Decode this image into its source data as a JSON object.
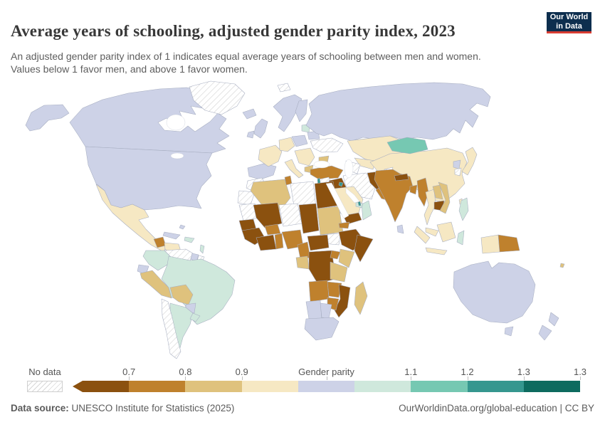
{
  "header": {
    "title": "Average years of schooling, adjusted gender parity index, 2023",
    "subtitle": "An adjusted gender parity index of 1 indicates equal average years of schooling between men and women. Values below 1 favor men, and above 1 favor women.",
    "logo": {
      "line1": "Our World",
      "line2": "in Data"
    }
  },
  "legend": {
    "no_data_label": "No data",
    "ticks": [
      {
        "label": "0.7",
        "anchor": "boundary",
        "i": 1
      },
      {
        "label": "0.8",
        "anchor": "boundary",
        "i": 2
      },
      {
        "label": "0.9",
        "anchor": "boundary",
        "i": 3
      },
      {
        "label": "Gender parity",
        "anchor": "mid",
        "i": 5
      },
      {
        "label": "1.1",
        "anchor": "boundary",
        "i": 6
      },
      {
        "label": "1.2",
        "anchor": "boundary",
        "i": 7
      },
      {
        "label": "1.3",
        "anchor": "boundary",
        "i": 8
      },
      {
        "label": "1.3",
        "anchor": "boundary",
        "i": 9
      }
    ]
  },
  "footer": {
    "source_label": "Data source:",
    "source_text": " UNESCO Institute for Statistics (2025)",
    "credit_text": "OurWorldinData.org/global-education | CC BY"
  },
  "chart_data": {
    "type": "choropleth",
    "title": "Average years of schooling, adjusted gender parity index",
    "year": "2023",
    "legend_tick_labels": [
      "0.7",
      "0.8",
      "0.9",
      "Gender parity",
      "1.1",
      "1.2",
      "1.3",
      "1.3"
    ],
    "no_data_style": "white with gray diagonal hatching",
    "bin_order": [
      "lt07",
      "b0708",
      "b0809",
      "b0910",
      "parity",
      "b1011",
      "b1112",
      "b1213",
      "gt13"
    ],
    "palette": {
      "lt07": "#8b510f",
      "b0708": "#bf812d",
      "b0809": "#dfc27d",
      "b0910": "#f6e8c3",
      "parity": "#cdd2e7",
      "b1011": "#cfe8dc",
      "b1112": "#76c8b2",
      "b1213": "#35978f",
      "gt13": "#0d6b5f"
    },
    "regions": [
      {
        "id": "alaska",
        "cat": "parity"
      },
      {
        "id": "canada",
        "cat": "parity"
      },
      {
        "id": "usa",
        "cat": "parity"
      },
      {
        "id": "greenland",
        "cat": "nodata"
      },
      {
        "id": "iceland",
        "cat": "parity"
      },
      {
        "id": "mexico",
        "cat": "b0910"
      },
      {
        "id": "guatemala",
        "cat": "b0708"
      },
      {
        "id": "honduras",
        "cat": "b0910"
      },
      {
        "id": "costarica-panama",
        "cat": "b1011"
      },
      {
        "id": "cuba",
        "cat": "parity"
      },
      {
        "id": "hispaniola",
        "cat": "b1011"
      },
      {
        "id": "bahamas",
        "cat": "parity"
      },
      {
        "id": "antilles",
        "cat": "b1011"
      },
      {
        "id": "venezuela",
        "cat": "nodata"
      },
      {
        "id": "guyana",
        "cat": "parity"
      },
      {
        "id": "suriname",
        "cat": "nodata"
      },
      {
        "id": "colombia",
        "cat": "b1011"
      },
      {
        "id": "ecuador",
        "cat": "parity"
      },
      {
        "id": "peru",
        "cat": "b0809"
      },
      {
        "id": "brazil",
        "cat": "b1011"
      },
      {
        "id": "bolivia",
        "cat": "b0809"
      },
      {
        "id": "paraguay",
        "cat": "parity"
      },
      {
        "id": "argentina",
        "cat": "b1011"
      },
      {
        "id": "chile",
        "cat": "nodata"
      },
      {
        "id": "uruguay",
        "cat": "b1011"
      },
      {
        "id": "norway-sweden",
        "cat": "parity"
      },
      {
        "id": "finland",
        "cat": "parity"
      },
      {
        "id": "baltics",
        "cat": "b1011"
      },
      {
        "id": "uk",
        "cat": "parity"
      },
      {
        "id": "ireland",
        "cat": "parity"
      },
      {
        "id": "iberia",
        "cat": "parity"
      },
      {
        "id": "france",
        "cat": "b0910"
      },
      {
        "id": "germany",
        "cat": "b0910"
      },
      {
        "id": "poland",
        "cat": "parity"
      },
      {
        "id": "italy",
        "cat": "b0910"
      },
      {
        "id": "balkans",
        "cat": "b0910"
      },
      {
        "id": "greece",
        "cat": "b0809"
      },
      {
        "id": "belarus",
        "cat": "parity"
      },
      {
        "id": "ukraine",
        "cat": "nodata"
      },
      {
        "id": "russia",
        "cat": "parity"
      },
      {
        "id": "svalbard",
        "cat": "nodata"
      },
      {
        "id": "kazakhstan",
        "cat": "b0910"
      },
      {
        "id": "uzbekistan",
        "cat": "b0910"
      },
      {
        "id": "turkmenistan",
        "cat": "nodata"
      },
      {
        "id": "kyrgyz-tajik",
        "cat": "b0809"
      },
      {
        "id": "caucasus",
        "cat": "b0809"
      },
      {
        "id": "turkey",
        "cat": "b0708"
      },
      {
        "id": "syria",
        "cat": "nodata"
      },
      {
        "id": "lebanon-palestine",
        "cat": "b1213"
      },
      {
        "id": "jordan",
        "cat": "b0910"
      },
      {
        "id": "iraq",
        "cat": "lt07"
      },
      {
        "id": "iran",
        "cat": "nodata"
      },
      {
        "id": "afghanistan",
        "cat": "lt07"
      },
      {
        "id": "pakistan",
        "cat": "b0708"
      },
      {
        "id": "saudi-arabia",
        "cat": "b0910"
      },
      {
        "id": "yemen",
        "cat": "lt07"
      },
      {
        "id": "oman",
        "cat": "b1011"
      },
      {
        "id": "uae",
        "cat": "b1011"
      },
      {
        "id": "kuwait",
        "cat": "b1213"
      },
      {
        "id": "qatar",
        "cat": "b1213"
      },
      {
        "id": "morocco",
        "cat": "nodata"
      },
      {
        "id": "western-sahara",
        "cat": "nodata"
      },
      {
        "id": "algeria",
        "cat": "b0809"
      },
      {
        "id": "tunisia",
        "cat": "b0708"
      },
      {
        "id": "libya",
        "cat": "nodata"
      },
      {
        "id": "egypt",
        "cat": "lt07"
      },
      {
        "id": "mauritania",
        "cat": "nodata"
      },
      {
        "id": "mali",
        "cat": "lt07"
      },
      {
        "id": "niger",
        "cat": "nodata"
      },
      {
        "id": "chad",
        "cat": "lt07"
      },
      {
        "id": "sudan",
        "cat": "b0809"
      },
      {
        "id": "south-sudan",
        "cat": "nodata"
      },
      {
        "id": "eritrea",
        "cat": "b0708"
      },
      {
        "id": "ethiopia",
        "cat": "lt07"
      },
      {
        "id": "somalia",
        "cat": "lt07"
      },
      {
        "id": "senegal",
        "cat": "lt07"
      },
      {
        "id": "guinea",
        "cat": "lt07"
      },
      {
        "id": "cotedivoire-ghana",
        "cat": "lt07"
      },
      {
        "id": "burkina",
        "cat": "b0708"
      },
      {
        "id": "togo-benin",
        "cat": "b0708"
      },
      {
        "id": "nigeria",
        "cat": "b0708"
      },
      {
        "id": "cameroon",
        "cat": "b0708"
      },
      {
        "id": "car",
        "cat": "lt07"
      },
      {
        "id": "gabon-congo",
        "cat": "b0809"
      },
      {
        "id": "drc",
        "cat": "lt07"
      },
      {
        "id": "uganda",
        "cat": "b0708"
      },
      {
        "id": "kenya",
        "cat": "b0809"
      },
      {
        "id": "tanzania",
        "cat": "b0809"
      },
      {
        "id": "angola",
        "cat": "b0708"
      },
      {
        "id": "zambia",
        "cat": "b0708"
      },
      {
        "id": "mozambique",
        "cat": "lt07"
      },
      {
        "id": "zimbabwe",
        "cat": "b0708"
      },
      {
        "id": "namibia",
        "cat": "parity"
      },
      {
        "id": "botswana",
        "cat": "parity"
      },
      {
        "id": "south-africa",
        "cat": "parity"
      },
      {
        "id": "madagascar",
        "cat": "b0809"
      },
      {
        "id": "china",
        "cat": "b0910"
      },
      {
        "id": "kashmir",
        "cat": "nodata"
      },
      {
        "id": "mongolia",
        "cat": "b1112"
      },
      {
        "id": "north-korea",
        "cat": "parity"
      },
      {
        "id": "south-korea",
        "cat": "nodata"
      },
      {
        "id": "japan",
        "cat": "b0910"
      },
      {
        "id": "taiwan",
        "cat": "b0910"
      },
      {
        "id": "india",
        "cat": "b0708"
      },
      {
        "id": "nepal",
        "cat": "lt07"
      },
      {
        "id": "bangladesh",
        "cat": "b0708"
      },
      {
        "id": "sri-lanka",
        "cat": "parity"
      },
      {
        "id": "myanmar",
        "cat": "b0708"
      },
      {
        "id": "thailand",
        "cat": "b0910"
      },
      {
        "id": "laos",
        "cat": "b0809"
      },
      {
        "id": "cambodia",
        "cat": "lt07"
      },
      {
        "id": "vietnam",
        "cat": "b0809"
      },
      {
        "id": "malaysia",
        "cat": "b0910"
      },
      {
        "id": "sumatra",
        "cat": "b0910"
      },
      {
        "id": "java",
        "cat": "b0910"
      },
      {
        "id": "borneo",
        "cat": "b0910"
      },
      {
        "id": "sulawesi",
        "cat": "b1011"
      },
      {
        "id": "philippines",
        "cat": "b1011"
      },
      {
        "id": "papua-indonesia",
        "cat": "b0910"
      },
      {
        "id": "png",
        "cat": "b0708"
      },
      {
        "id": "fiji",
        "cat": "b0809"
      },
      {
        "id": "australia",
        "cat": "parity"
      },
      {
        "id": "tasmania",
        "cat": "parity"
      },
      {
        "id": "nz-north",
        "cat": "parity"
      },
      {
        "id": "nz-south",
        "cat": "parity"
      }
    ]
  }
}
